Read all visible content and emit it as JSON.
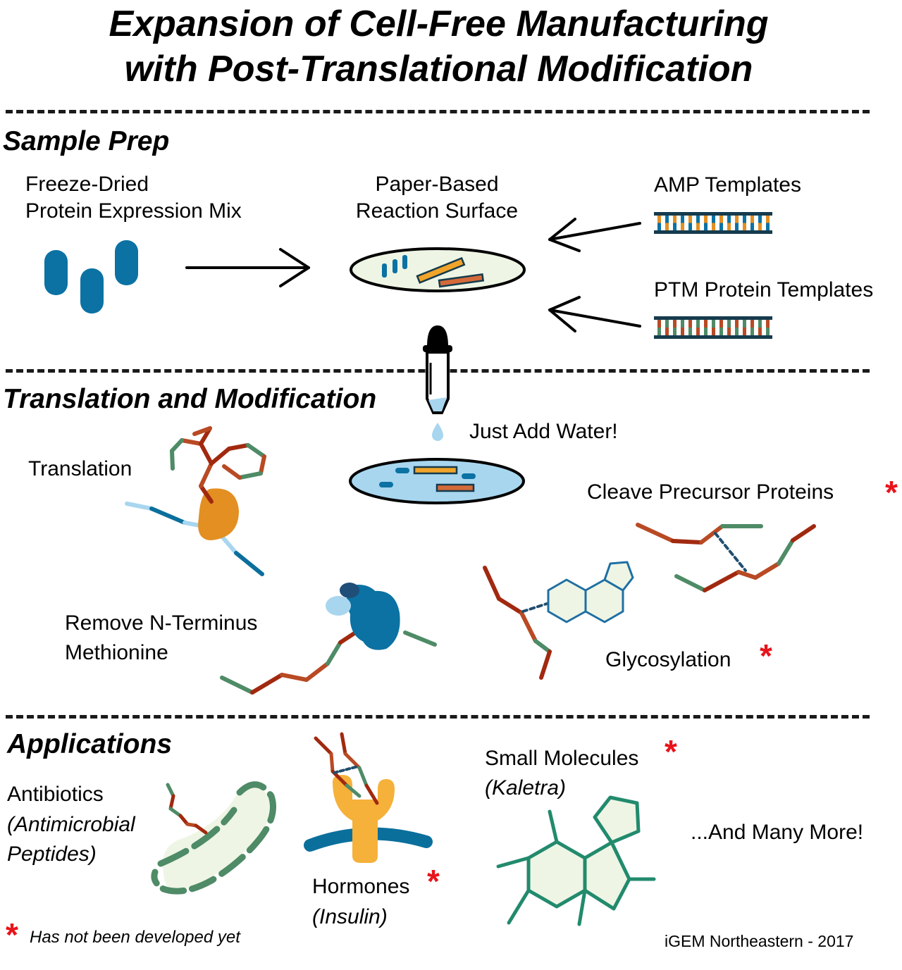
{
  "title": {
    "line1": "Expansion of Cell-Free Manufacturing",
    "line2": "with Post-Translational Modification"
  },
  "sections": {
    "sample_prep": "Sample Prep",
    "translation": "Translation and Modification",
    "applications": "Applications"
  },
  "sample_prep": {
    "mix_line1": "Freeze-Dried",
    "mix_line2": "Protein Expression Mix",
    "surface_line1": "Paper-Based",
    "surface_line2": "Reaction Surface",
    "amp": "AMP Templates",
    "ptm": "PTM Protein Templates"
  },
  "translation": {
    "water": "Just Add Water!",
    "translation": "Translation",
    "cleave": "Cleave Precursor Proteins",
    "remove_line1": "Remove N-Terminus",
    "remove_line2": "Methionine",
    "glyco": "Glycosylation"
  },
  "applications": {
    "antibiotics": "Antibiotics",
    "antibiotics_sub1": "(Antimicrobial",
    "antibiotics_sub2": "Peptides)",
    "hormones": "Hormones",
    "hormones_sub": "(Insulin)",
    "small": "Small Molecules",
    "small_sub": "(Kaletra)",
    "more": "...And Many More!"
  },
  "footnote": {
    "star": "*",
    "text": "Has not been developed yet"
  },
  "credit": "iGEM Northeastern - 2017",
  "colors": {
    "blue": "#0b72a3",
    "dark_red": "#a1290f",
    "rust": "#b84a24",
    "green": "#4e8b66",
    "orange": "#e38f22",
    "light_blue": "#a8d6ef",
    "pale_green": "#eef5e4",
    "teal": "#228a6d",
    "yellow_orange": "#f5b13a",
    "star_red": "#e8141b"
  }
}
